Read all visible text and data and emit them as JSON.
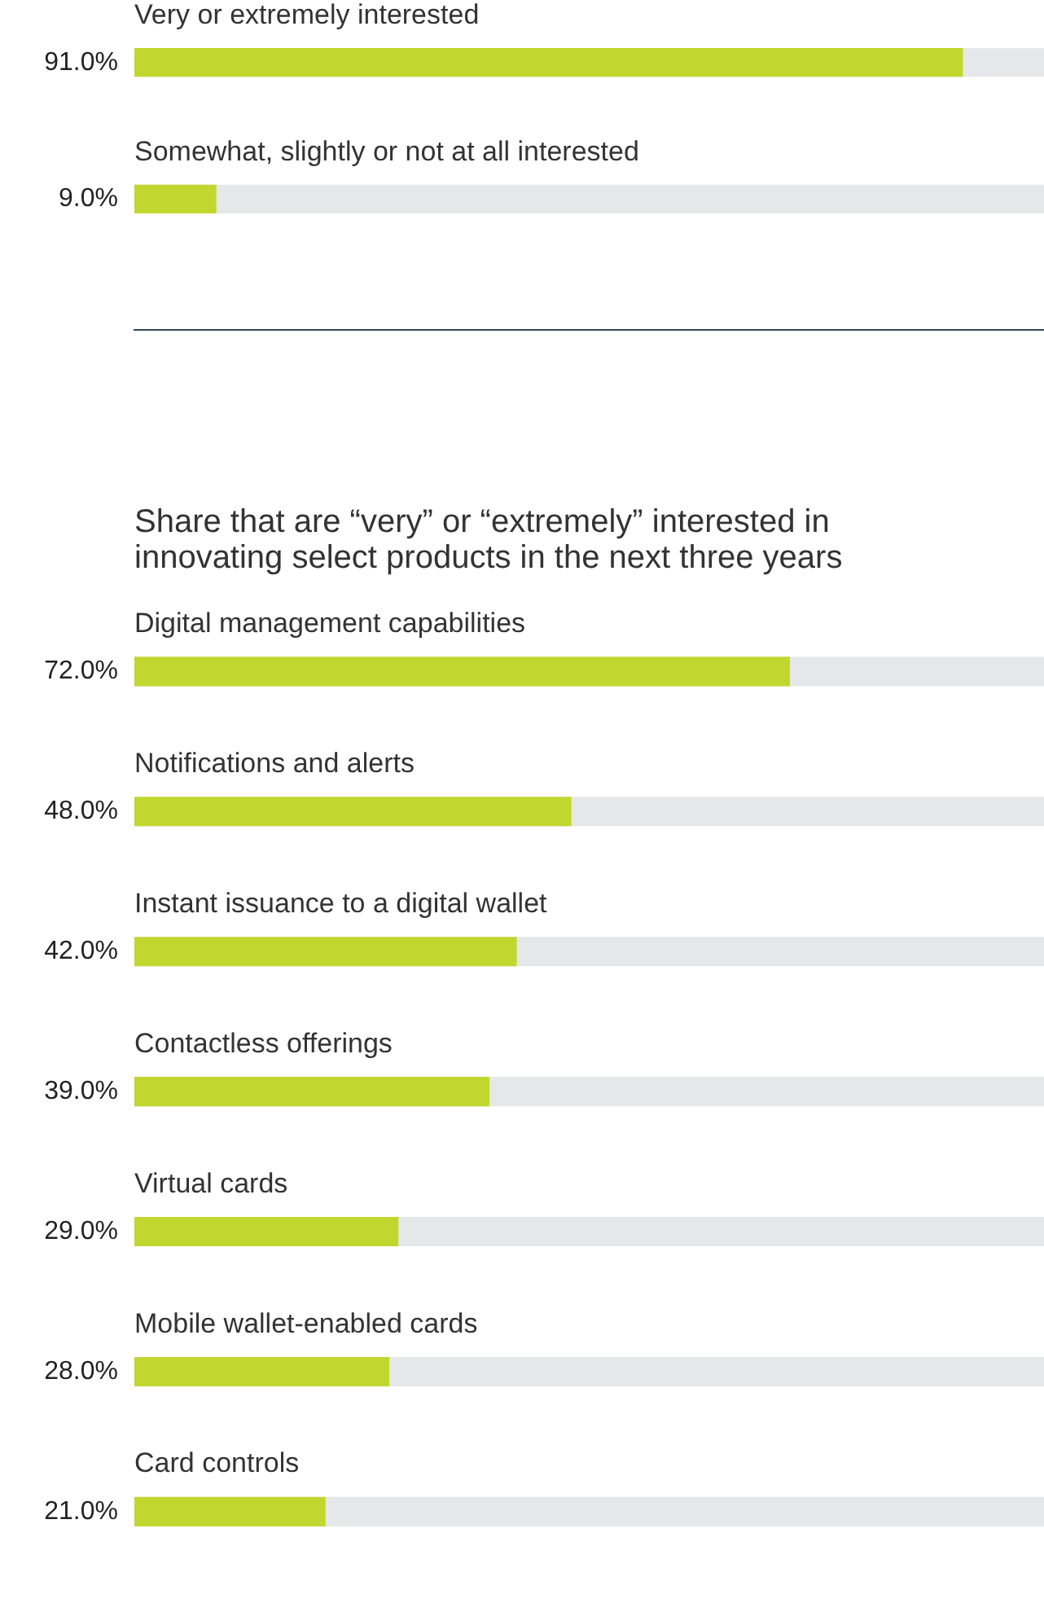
{
  "chart_data": [
    {
      "type": "bar",
      "orientation": "horizontal",
      "categories": [
        "Very or extremely interested",
        "Somewhat, slightly or not at all interested"
      ],
      "values": [
        91.0,
        9.0
      ],
      "value_labels": [
        "91.0%",
        "9.0%"
      ],
      "color": "#c1d72f",
      "xlim": [
        0,
        100
      ],
      "tick_labels": false,
      "grid": false,
      "legend": false
    },
    {
      "type": "bar",
      "orientation": "horizontal",
      "title": "Share that are “very” or “extremely” interested in innovating select products in the next three years",
      "categories": [
        "Digital management capabilities",
        "Notifications and alerts",
        "Instant issuance to a digital wallet",
        "Contactless offerings",
        "Virtual cards",
        "Mobile wallet-enabled cards",
        "Card controls"
      ],
      "values": [
        72.0,
        48.0,
        42.0,
        39.0,
        29.0,
        28.0,
        21.0
      ],
      "value_labels": [
        "72.0%",
        "48.0%",
        "42.0%",
        "39.0%",
        "29.0%",
        "28.0%",
        "21.0%"
      ],
      "color": "#c1d72f",
      "xlim": [
        0,
        100
      ],
      "tick_labels": false,
      "grid": false,
      "legend": false
    }
  ]
}
